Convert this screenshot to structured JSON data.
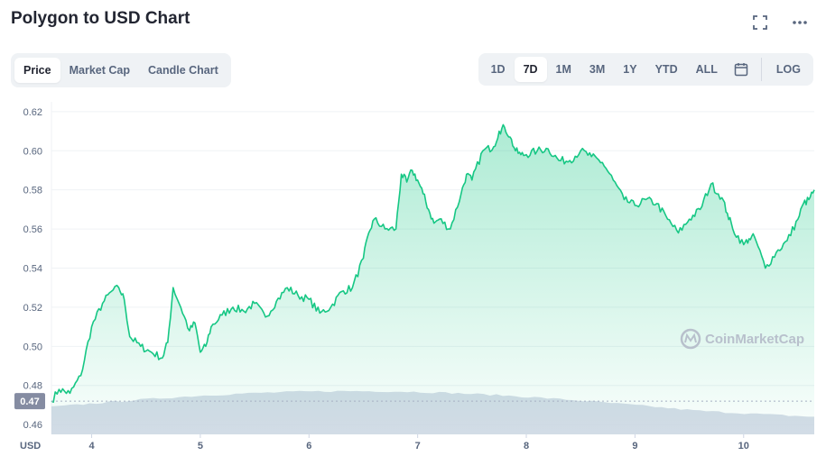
{
  "header": {
    "title": "Polygon to USD Chart"
  },
  "icons": {
    "fullscreen": "fullscreen-icon",
    "more": "more-icon",
    "calendar": "calendar-icon",
    "watermark_logo": "coinmarketcap-logo-icon"
  },
  "view_tabs": [
    {
      "label": "Price",
      "active": true
    },
    {
      "label": "Market Cap",
      "active": false
    },
    {
      "label": "Candle Chart",
      "active": false
    }
  ],
  "range_tabs": [
    {
      "label": "1D",
      "active": false
    },
    {
      "label": "7D",
      "active": true
    },
    {
      "label": "1M",
      "active": false
    },
    {
      "label": "3M",
      "active": false
    },
    {
      "label": "1Y",
      "active": false
    },
    {
      "label": "YTD",
      "active": false
    },
    {
      "label": "ALL",
      "active": false
    }
  ],
  "log_label": "LOG",
  "watermark": "CoinMarketCap",
  "colors": {
    "line": "#16c784",
    "volume": "#cfd6e4",
    "grid": "#eff2f5",
    "badge": "#858ca2"
  },
  "chart_data": {
    "type": "line",
    "ylabel": "USD",
    "ylim": [
      0.455,
      0.625
    ],
    "y_ticks": [
      "0.62",
      "0.60",
      "0.58",
      "0.56",
      "0.54",
      "0.52",
      "0.50",
      "0.48",
      "0.46"
    ],
    "x_ticks": [
      "4",
      "5",
      "6",
      "7",
      "8",
      "9",
      "10"
    ],
    "xlim": [
      3.63,
      10.65
    ],
    "reference_line": {
      "value": 0.472,
      "label": "0.47"
    },
    "series": [
      {
        "x": [
          3.63,
          3.7,
          3.8,
          3.9,
          4.0,
          4.1,
          4.18,
          4.25,
          4.3,
          4.35,
          4.45,
          4.55,
          4.65,
          4.7,
          4.75,
          4.82,
          4.9,
          4.95,
          5.0,
          5.05,
          5.1,
          5.2,
          5.3,
          5.4,
          5.5,
          5.6,
          5.7,
          5.8,
          5.9,
          6.0,
          6.1,
          6.2,
          6.3,
          6.4,
          6.5,
          6.55,
          6.6,
          6.7,
          6.8,
          6.85,
          6.9,
          6.95,
          7.0,
          7.05,
          7.1,
          7.15,
          7.2,
          7.3,
          7.4,
          7.45,
          7.5,
          7.6,
          7.7,
          7.75,
          7.8,
          7.85,
          7.9,
          7.95,
          8.0,
          8.1,
          8.2,
          8.3,
          8.4,
          8.5,
          8.6,
          8.7,
          8.8,
          8.9,
          9.0,
          9.1,
          9.2,
          9.3,
          9.4,
          9.5,
          9.6,
          9.7,
          9.8,
          9.85,
          9.9,
          10.0,
          10.05,
          10.1,
          10.2,
          10.3,
          10.4,
          10.5,
          10.55,
          10.6,
          10.65
        ],
        "y": [
          0.472,
          0.478,
          0.476,
          0.485,
          0.51,
          0.522,
          0.528,
          0.53,
          0.524,
          0.505,
          0.5,
          0.497,
          0.494,
          0.502,
          0.53,
          0.52,
          0.508,
          0.512,
          0.497,
          0.5,
          0.51,
          0.516,
          0.52,
          0.518,
          0.522,
          0.515,
          0.523,
          0.53,
          0.526,
          0.524,
          0.517,
          0.52,
          0.528,
          0.53,
          0.545,
          0.558,
          0.565,
          0.56,
          0.56,
          0.588,
          0.584,
          0.59,
          0.585,
          0.578,
          0.57,
          0.563,
          0.565,
          0.56,
          0.578,
          0.588,
          0.585,
          0.6,
          0.602,
          0.61,
          0.612,
          0.607,
          0.6,
          0.598,
          0.598,
          0.6,
          0.601,
          0.595,
          0.595,
          0.6,
          0.597,
          0.594,
          0.585,
          0.575,
          0.572,
          0.575,
          0.573,
          0.565,
          0.558,
          0.565,
          0.57,
          0.583,
          0.576,
          0.568,
          0.56,
          0.552,
          0.555,
          0.556,
          0.54,
          0.548,
          0.554,
          0.565,
          0.573,
          0.575,
          0.58
        ]
      }
    ]
  }
}
